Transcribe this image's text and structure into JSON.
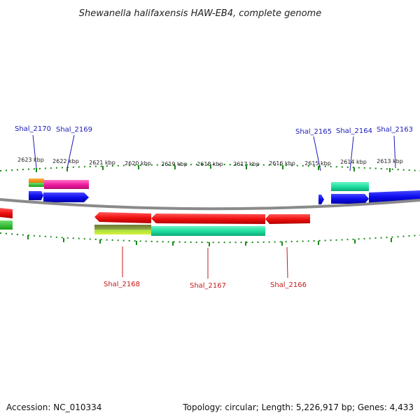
{
  "title": "Shewanella halifaxensis HAW-EB4, complete genome",
  "ticks": [
    "2623 kbp",
    "2622 kbp",
    "2621 kbp",
    "2620 kbp",
    "2619 kbp",
    "2618 kbp",
    "2617 kbp",
    "2616 kbp",
    "2615 kbp",
    "2614 kbp",
    "2613 kbp"
  ],
  "genes_top": [
    "Shal_2170",
    "Shal_2169",
    "Shal_2165",
    "Shal_2164",
    "Shal_2163"
  ],
  "genes_bottom": [
    "Shal_2168",
    "Shal_2167",
    "Shal_2166"
  ],
  "footer": {
    "accession": "Accession: NC_010334",
    "summary": "Topology: circular; Length: 5,226,917 bp; Genes: 4,433"
  },
  "colors": {
    "forward_strand": "#1010e0",
    "reverse_strand": "#e01010",
    "ticks": "#1a8a1a",
    "backbone": "#888888"
  }
}
